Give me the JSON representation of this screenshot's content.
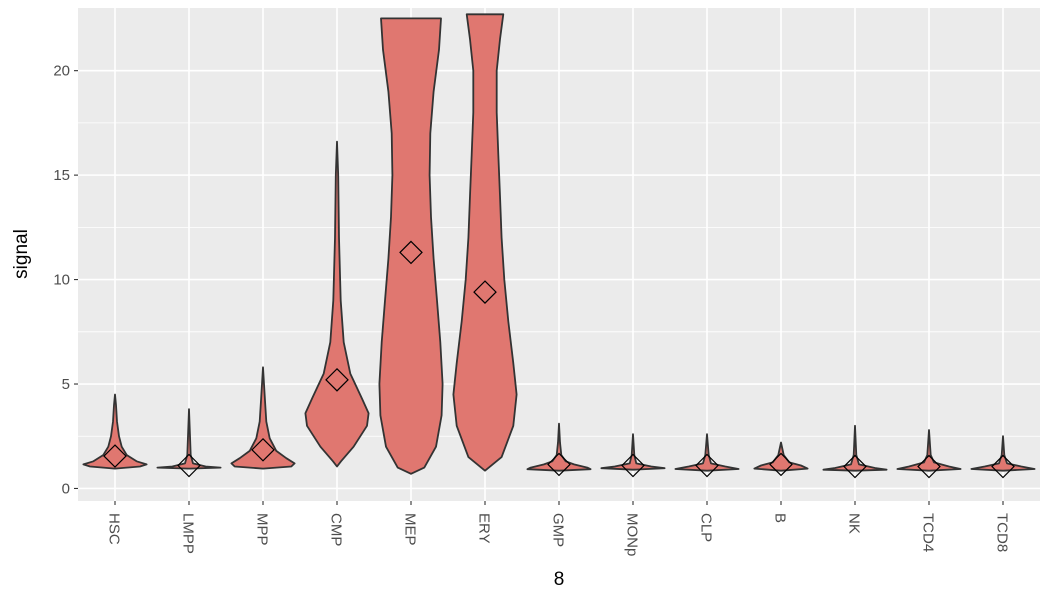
{
  "chart_data": {
    "type": "violin",
    "xlabel": "8",
    "ylabel": "signal",
    "ylim": [
      -0.6,
      23.0
    ],
    "yticks": [
      0,
      5,
      10,
      15,
      20
    ],
    "categories": [
      "HSC",
      "LMPP",
      "MPP",
      "CMP",
      "MEP",
      "ERY",
      "GMP",
      "MONp",
      "CLP",
      "B",
      "NK",
      "TCD4",
      "TCD8"
    ],
    "means": [
      1.55,
      1.1,
      1.85,
      5.2,
      11.3,
      9.4,
      1.15,
      1.1,
      1.1,
      1.15,
      1.05,
      1.05,
      1.05
    ],
    "violins": [
      {
        "min": 0.95,
        "max": 4.5,
        "profile": [
          [
            0.95,
            0
          ],
          [
            1.05,
            0.75
          ],
          [
            1.15,
            0.95
          ],
          [
            1.3,
            0.65
          ],
          [
            1.6,
            0.35
          ],
          [
            2.0,
            0.2
          ],
          [
            2.5,
            0.12
          ],
          [
            3.2,
            0.06
          ],
          [
            4.0,
            0.03
          ],
          [
            4.5,
            0
          ]
        ]
      },
      {
        "min": 0.95,
        "max": 3.8,
        "profile": [
          [
            0.95,
            0
          ],
          [
            1.0,
            0.95
          ],
          [
            1.05,
            0.5
          ],
          [
            1.2,
            0.12
          ],
          [
            1.6,
            0.05
          ],
          [
            2.5,
            0.03
          ],
          [
            3.8,
            0
          ]
        ]
      },
      {
        "min": 0.95,
        "max": 5.8,
        "profile": [
          [
            0.95,
            0
          ],
          [
            1.05,
            0.85
          ],
          [
            1.2,
            0.95
          ],
          [
            1.45,
            0.7
          ],
          [
            1.8,
            0.4
          ],
          [
            2.4,
            0.2
          ],
          [
            3.2,
            0.1
          ],
          [
            4.2,
            0.06
          ],
          [
            5.0,
            0.03
          ],
          [
            5.8,
            0
          ]
        ]
      },
      {
        "min": 1.05,
        "max": 16.6,
        "profile": [
          [
            1.05,
            0
          ],
          [
            1.3,
            0.12
          ],
          [
            2.0,
            0.5
          ],
          [
            3.0,
            0.9
          ],
          [
            3.6,
            0.95
          ],
          [
            4.3,
            0.75
          ],
          [
            5.5,
            0.4
          ],
          [
            7.0,
            0.2
          ],
          [
            9.0,
            0.11
          ],
          [
            12.0,
            0.06
          ],
          [
            15.0,
            0.035
          ],
          [
            16.6,
            0
          ]
        ]
      },
      {
        "min": 0.7,
        "max": 22.5,
        "profile": [
          [
            0.7,
            0
          ],
          [
            1.0,
            0.4
          ],
          [
            2.0,
            0.75
          ],
          [
            3.5,
            0.92
          ],
          [
            5.0,
            0.95
          ],
          [
            7.0,
            0.88
          ],
          [
            9.0,
            0.78
          ],
          [
            11.0,
            0.68
          ],
          [
            13.0,
            0.6
          ],
          [
            15.0,
            0.56
          ],
          [
            17.0,
            0.58
          ],
          [
            19.0,
            0.68
          ],
          [
            21.0,
            0.84
          ],
          [
            22.5,
            0.9
          ]
        ]
      },
      {
        "min": 0.85,
        "max": 22.7,
        "profile": [
          [
            0.85,
            0
          ],
          [
            1.5,
            0.5
          ],
          [
            3.0,
            0.85
          ],
          [
            4.5,
            0.95
          ],
          [
            6.0,
            0.85
          ],
          [
            8.0,
            0.7
          ],
          [
            10.0,
            0.58
          ],
          [
            12.0,
            0.5
          ],
          [
            14.0,
            0.45
          ],
          [
            16.0,
            0.4
          ],
          [
            18.0,
            0.35
          ],
          [
            20.0,
            0.35
          ],
          [
            21.5,
            0.45
          ],
          [
            22.7,
            0.55
          ]
        ]
      },
      {
        "min": 0.85,
        "max": 3.1,
        "profile": [
          [
            0.85,
            0
          ],
          [
            0.92,
            0.95
          ],
          [
            1.0,
            0.85
          ],
          [
            1.15,
            0.45
          ],
          [
            1.3,
            0.2
          ],
          [
            1.6,
            0.07
          ],
          [
            2.2,
            0.03
          ],
          [
            3.1,
            0
          ]
        ]
      },
      {
        "min": 0.9,
        "max": 2.6,
        "profile": [
          [
            0.9,
            0
          ],
          [
            0.97,
            0.95
          ],
          [
            1.05,
            0.55
          ],
          [
            1.2,
            0.1
          ],
          [
            1.6,
            0.04
          ],
          [
            2.6,
            0
          ]
        ]
      },
      {
        "min": 0.85,
        "max": 2.6,
        "profile": [
          [
            0.85,
            0
          ],
          [
            0.93,
            0.95
          ],
          [
            1.05,
            0.55
          ],
          [
            1.2,
            0.12
          ],
          [
            1.6,
            0.05
          ],
          [
            2.6,
            0
          ]
        ]
      },
      {
        "min": 0.85,
        "max": 2.2,
        "profile": [
          [
            0.85,
            0
          ],
          [
            0.95,
            0.8
          ],
          [
            1.1,
            0.6
          ],
          [
            1.25,
            0.25
          ],
          [
            1.6,
            0.08
          ],
          [
            2.2,
            0
          ]
        ]
      },
      {
        "min": 0.85,
        "max": 3.0,
        "profile": [
          [
            0.85,
            0
          ],
          [
            0.9,
            0.95
          ],
          [
            0.98,
            0.6
          ],
          [
            1.15,
            0.12
          ],
          [
            1.6,
            0.04
          ],
          [
            3.0,
            0
          ]
        ]
      },
      {
        "min": 0.85,
        "max": 2.8,
        "profile": [
          [
            0.85,
            0
          ],
          [
            0.93,
            0.95
          ],
          [
            1.05,
            0.6
          ],
          [
            1.25,
            0.15
          ],
          [
            1.6,
            0.05
          ],
          [
            2.8,
            0
          ]
        ]
      },
      {
        "min": 0.85,
        "max": 2.5,
        "profile": [
          [
            0.85,
            0
          ],
          [
            0.93,
            0.95
          ],
          [
            1.05,
            0.55
          ],
          [
            1.2,
            0.12
          ],
          [
            1.6,
            0.04
          ],
          [
            2.5,
            0
          ]
        ]
      }
    ],
    "colors": {
      "panel": "#ebebeb",
      "grid": "#ffffff",
      "fill": "#e07770",
      "stroke": "#333333",
      "tick": "#333333"
    }
  }
}
